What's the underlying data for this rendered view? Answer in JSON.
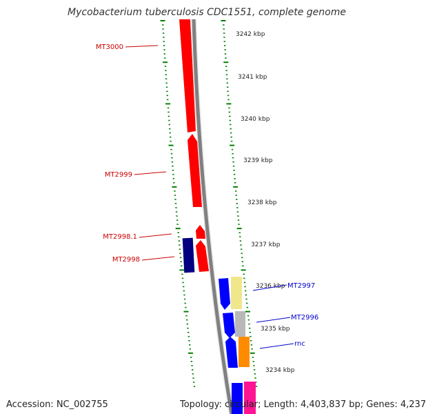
{
  "title": "Mycobacterium tuberculosis CDC1551, complete genome",
  "accession": "Accession: NC_002755",
  "summary": "Topology: circular; Length: 4,403,837 bp; Genes: 4,237",
  "colors": {
    "tick": "#008000",
    "backbone": "#808080",
    "label_red": "#cc0000",
    "label_blue": "#0000cc"
  },
  "kbp_labels": [
    "3242 kbp",
    "3241 kbp",
    "3240 kbp",
    "3239 kbp",
    "3238 kbp",
    "3237 kbp",
    "3236 kbp",
    "3235 kbp",
    "3234 kbp"
  ],
  "genes": [
    {
      "name": "MT3000",
      "color": "#ff0000"
    },
    {
      "name": "MT2999",
      "color": "#ff0000"
    },
    {
      "name": "MT2998.1",
      "color": "#ff0000"
    },
    {
      "name": "MT2998",
      "color": "#ff0000"
    },
    {
      "name": "MT2997",
      "color": "#0000ff"
    },
    {
      "name": "MT2996",
      "color": "#0000ff"
    },
    {
      "name": "rnc",
      "color": "#0000ff"
    }
  ]
}
